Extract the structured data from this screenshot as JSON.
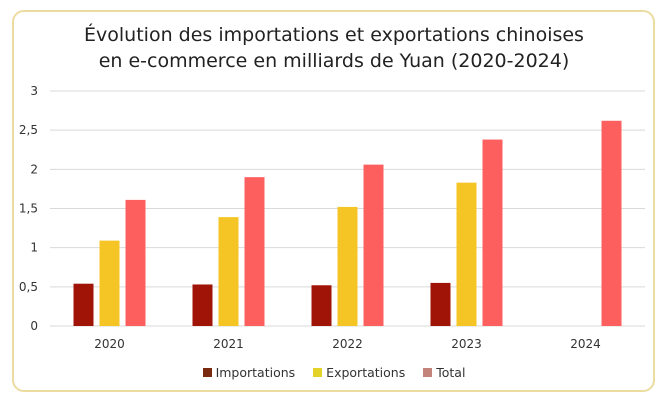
{
  "chart_data": {
    "type": "bar",
    "title_line1": "Évolution des importations et exportations chinoises",
    "title_line2": "en e-commerce en milliards de Yuan (2020-2024)",
    "xlabel": "",
    "ylabel": "",
    "ylim": [
      0,
      3
    ],
    "yticks": [
      "0",
      "0,5",
      "1",
      "1,5",
      "2",
      "2,5",
      "3"
    ],
    "grid": true,
    "legend_position": "bottom",
    "categories": [
      "2020",
      "2021",
      "2022",
      "2023",
      "2024"
    ],
    "series": [
      {
        "name": "Importations",
        "color": "#a01408",
        "legend_color": "#7a2a10",
        "values": [
          0.54,
          0.53,
          0.52,
          0.55,
          null
        ]
      },
      {
        "name": "Exportations",
        "color": "#f5c526",
        "legend_color": "#e2d22a",
        "values": [
          1.09,
          1.39,
          1.52,
          1.83,
          null
        ]
      },
      {
        "name": "Total",
        "color": "#fd5f5f",
        "legend_color": "#c4837a",
        "values": [
          1.61,
          1.9,
          2.06,
          2.38,
          2.62
        ]
      }
    ]
  }
}
